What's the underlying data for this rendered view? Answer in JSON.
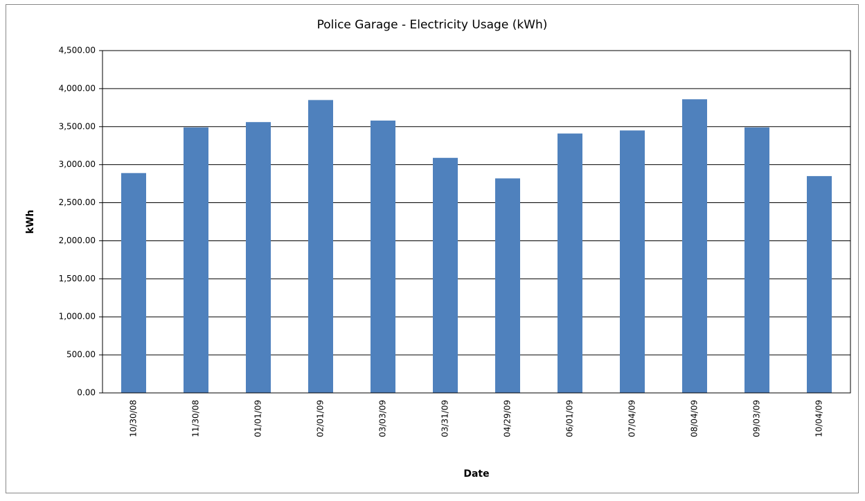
{
  "chart_data": {
    "type": "bar",
    "title": "Police Garage - Electricity Usage (kWh)",
    "x_label": "Date",
    "y_label": "kWh",
    "categories": [
      "10/30/08",
      "11/30/08",
      "01/01/09",
      "02/01/09",
      "03/03/09",
      "03/31/09",
      "04/29/09",
      "06/01/09",
      "07/04/09",
      "08/04/09",
      "09/03/09",
      "10/04/09"
    ],
    "values": [
      2890,
      3490,
      3560,
      3850,
      3580,
      3090,
      2820,
      3410,
      3450,
      3860,
      3490,
      2850
    ],
    "color": "#4f81bd",
    "ylim": [
      0,
      4500
    ],
    "yticks": [
      {
        "value": 0,
        "label": "0.00"
      },
      {
        "value": 500,
        "label": "500.00"
      },
      {
        "value": 1000,
        "label": "1,000.00"
      },
      {
        "value": 1500,
        "label": "1,500.00"
      },
      {
        "value": 2000,
        "label": "2,000.00"
      },
      {
        "value": 2500,
        "label": "2,500.00"
      },
      {
        "value": 3000,
        "label": "3,000.00"
      },
      {
        "value": 3500,
        "label": "3,500.00"
      },
      {
        "value": 4000,
        "label": "4,000.00"
      },
      {
        "value": 4500,
        "label": "4,500.00"
      }
    ],
    "grid": true
  }
}
